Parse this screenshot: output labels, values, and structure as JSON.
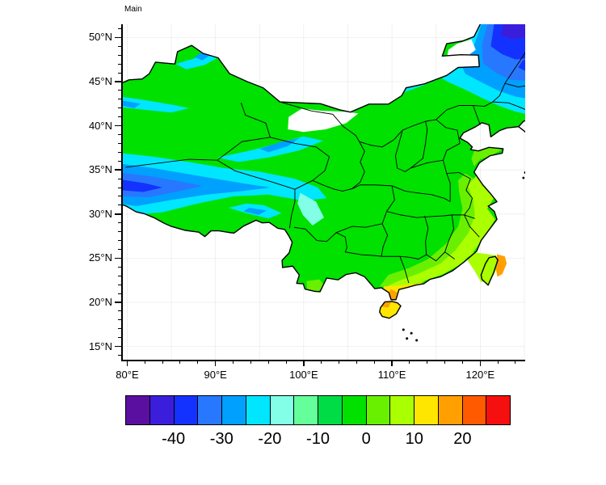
{
  "figure": {
    "title": "Main",
    "background": "#ffffff"
  },
  "chart_data": {
    "type": "heatmap",
    "subtype": "filled-contour-map",
    "title": "Main",
    "region": "China with province boundaries",
    "x_axis": {
      "ticks": [
        {
          "value": 80,
          "label": "80°E"
        },
        {
          "value": 90,
          "label": "90°E"
        },
        {
          "value": 100,
          "label": "100°E"
        },
        {
          "value": 110,
          "label": "110°E"
        },
        {
          "value": 120,
          "label": "120°E"
        }
      ],
      "minor_tick_step_deg": 2,
      "range_deg": [
        79.5,
        125.1
      ]
    },
    "y_axis": {
      "ticks": [
        {
          "value": 50,
          "label": "50°N"
        },
        {
          "value": 45,
          "label": "45°N"
        },
        {
          "value": 40,
          "label": "40°N"
        },
        {
          "value": 35,
          "label": "35°N"
        },
        {
          "value": 30,
          "label": "30°N"
        },
        {
          "value": 25,
          "label": "25°N"
        },
        {
          "value": 20,
          "label": "20°N"
        },
        {
          "value": 15,
          "label": "15°N"
        }
      ],
      "minor_tick_step_deg": 1,
      "range_deg": [
        13.5,
        51.5
      ]
    },
    "colorbar": {
      "orientation": "horizontal",
      "level_step": 5,
      "palette": [
        "#5A0FA0",
        "#3A1EDC",
        "#1432FF",
        "#2878FF",
        "#00A0FF",
        "#00E6FF",
        "#82FFE6",
        "#64FF9B",
        "#00DC46",
        "#00E100",
        "#69F000",
        "#AAFF00",
        "#FFE600",
        "#FFA000",
        "#FF5A00",
        "#F50F0F"
      ],
      "tick_labels": [
        {
          "label": "-40",
          "boundary_index": 2
        },
        {
          "label": "-30",
          "boundary_index": 4
        },
        {
          "label": "-20",
          "boundary_index": 6
        },
        {
          "label": "-10",
          "boundary_index": 8
        },
        {
          "label": "0",
          "boundary_index": 10
        },
        {
          "label": "10",
          "boundary_index": 12
        },
        {
          "label": "20",
          "boundary_index": 14
        }
      ]
    },
    "field_summary": [
      {
        "region": "northeast China (Heilongjiang/Jilin)",
        "approx_value_range": [
          -40,
          -15
        ]
      },
      {
        "region": "western Tibetan Plateau / Kunlun / Qilian",
        "approx_value_range": [
          -30,
          -10
        ]
      },
      {
        "region": "Altai / Tien Shan / northern Inner Mongolia",
        "approx_value_range": [
          -20,
          -10
        ]
      },
      {
        "region": "most of central and eastern China",
        "approx_value_range": [
          -10,
          0
        ]
      },
      {
        "region": "southeast coastal band",
        "approx_value_range": [
          0,
          10
        ]
      },
      {
        "region": "south coast, Leizhou peninsula, Hainan",
        "approx_value_range": [
          10,
          20
        ]
      },
      {
        "region": "ocean east of Taiwan",
        "approx_value_range": [
          15,
          20
        ]
      }
    ]
  }
}
